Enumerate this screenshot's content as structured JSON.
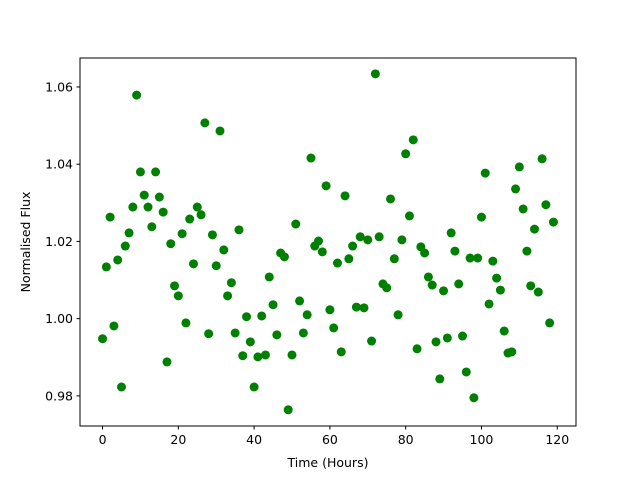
{
  "chart_data": {
    "type": "scatter",
    "x_label": "Time (Hours)",
    "y_label": "Normalised Flux",
    "series": [
      {
        "color": "#008000",
        "x": [
          0,
          1,
          2,
          3,
          4,
          5,
          6,
          7,
          8,
          9,
          10,
          11,
          12,
          13,
          14,
          15,
          16,
          17,
          18,
          19,
          20,
          21,
          22,
          23,
          24,
          25,
          26,
          27,
          28,
          29,
          30,
          31,
          32,
          33,
          34,
          35,
          36,
          37,
          38,
          39,
          40,
          41,
          42,
          43,
          44,
          45,
          46,
          47,
          48,
          49,
          50,
          51,
          52,
          53,
          54,
          55,
          56,
          57,
          58,
          59,
          60,
          61,
          62,
          63,
          64,
          65,
          66,
          67,
          68,
          69,
          70,
          71,
          72,
          73,
          74,
          75,
          76,
          77,
          78,
          79,
          80,
          81,
          82,
          83,
          84,
          85,
          86,
          87,
          88,
          89,
          90,
          91,
          92,
          93,
          94,
          95,
          96,
          97,
          98,
          99,
          100,
          101,
          102,
          103,
          104,
          105,
          106,
          107,
          108,
          109,
          110,
          111,
          112,
          113,
          114,
          115,
          116,
          117,
          118,
          119
        ],
        "values": [
          0.9948,
          1.0134,
          1.0263,
          0.9981,
          1.0152,
          0.9823,
          1.0188,
          1.0222,
          1.0289,
          1.0579,
          1.038,
          1.032,
          1.0289,
          1.0238,
          1.038,
          1.0315,
          1.0276,
          0.9888,
          1.0194,
          1.0085,
          1.0059,
          1.022,
          0.9989,
          1.0258,
          1.0142,
          1.0289,
          1.0269,
          1.0507,
          0.9961,
          1.0217,
          1.0137,
          1.0486,
          1.0178,
          1.0059,
          1.0093,
          0.9963,
          1.023,
          0.9904,
          1.0005,
          0.994,
          0.9823,
          0.9901,
          1.0007,
          0.9906,
          1.0108,
          1.0036,
          0.9958,
          1.017,
          1.016,
          0.9764,
          0.9906,
          1.0245,
          1.0046,
          0.9963,
          1.001,
          1.0416,
          1.0188,
          1.0201,
          1.0173,
          1.0344,
          1.0023,
          0.9976,
          1.0144,
          0.9914,
          1.0318,
          1.0155,
          1.0188,
          1.003,
          1.0212,
          1.0028,
          1.0204,
          0.9942,
          1.0634,
          1.0212,
          1.009,
          1.008,
          1.031,
          1.0155,
          1.001,
          1.0204,
          1.0427,
          1.0266,
          1.0463,
          0.9922,
          1.0186,
          1.017,
          1.0108,
          1.0087,
          0.994,
          0.9844,
          1.0072,
          0.995,
          1.0222,
          1.0175,
          1.009,
          0.9955,
          0.9862,
          1.0157,
          0.9795,
          1.0157,
          1.0263,
          1.0377,
          1.0038,
          1.0149,
          1.0105,
          1.0074,
          0.9968,
          0.9911,
          0.9914,
          1.0336,
          1.0393,
          1.0284,
          1.0175,
          1.0085,
          1.0232,
          1.0069,
          1.0414,
          1.0295,
          0.9989,
          1.025
        ]
      }
    ],
    "xlim": [
      -5.95,
      124.95
    ],
    "xticks": [
      0,
      20,
      40,
      60,
      80,
      100,
      120
    ],
    "ylim": [
      0.9722,
      1.0675
    ],
    "yticks": [
      0.98,
      {
        "value": 1,
        "label": "1.00"
      },
      1.02,
      1.04,
      1.06
    ],
    "grid": false
  }
}
